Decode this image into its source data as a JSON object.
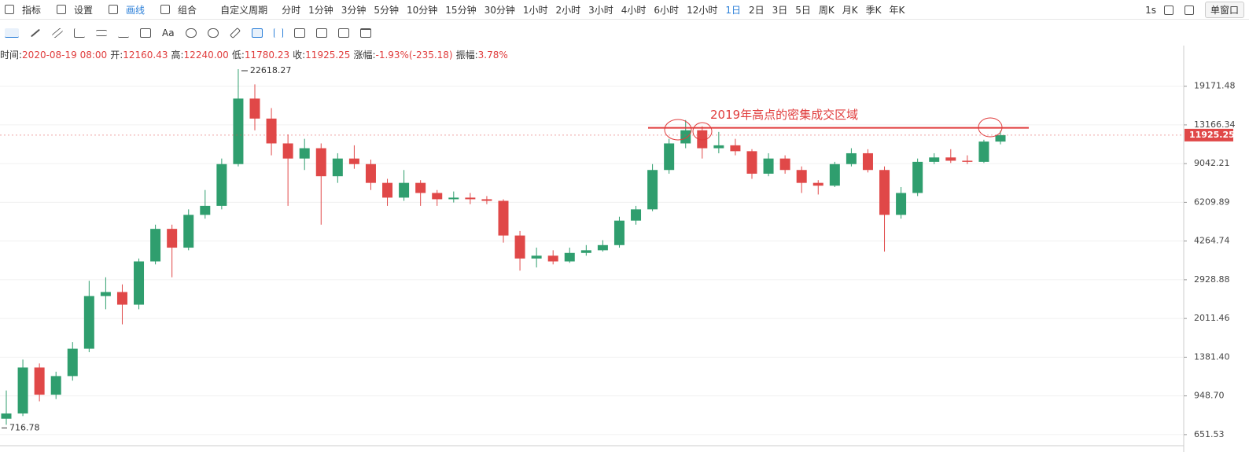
{
  "toolbar": {
    "items": [
      "指标",
      "设置",
      "画线",
      "组合"
    ],
    "period_menu": "自定义周期",
    "periods": [
      "分时",
      "1分钟",
      "3分钟",
      "5分钟",
      "10分钟",
      "15分钟",
      "30分钟",
      "1小时",
      "2小时",
      "3小时",
      "4小时",
      "6小时",
      "12小时",
      "1日",
      "2日",
      "3日",
      "5日",
      "周K",
      "月K",
      "季K",
      "年K"
    ],
    "active_period": "1日",
    "active_color": "#2b7fd8",
    "interval": "1s",
    "window": "单窗口"
  },
  "drawing_tools": {
    "text_tool": "Aa"
  },
  "info_bar": {
    "items": [
      {
        "label": "时间:",
        "value": "2020-08-19 08:00"
      },
      {
        "label": "开:",
        "value": "12160.43"
      },
      {
        "label": "高:",
        "value": "12240.00"
      },
      {
        "label": "低:",
        "value": "11780.23"
      },
      {
        "label": "收:",
        "value": "11925.25"
      },
      {
        "label": "涨幅:",
        "value": "-1.93%(-235.18)"
      },
      {
        "label": "振幅:",
        "value": "3.78%"
      }
    ],
    "value_color": "#e03c3c"
  },
  "chart_data": {
    "type": "candlestick",
    "log_scale": true,
    "grid": true,
    "up_color": "#2f9e6e",
    "down_color": "#e04848",
    "ylim": [
      585,
      28000
    ],
    "yticks": [
      {
        "value": 651.53,
        "label": "651.53"
      },
      {
        "value": 948.7,
        "label": "948.70"
      },
      {
        "value": 1381.4,
        "label": "1381.40"
      },
      2011.46,
      2928.88,
      4264.74,
      6209.89,
      9042.21,
      13166.34,
      19171.48
    ],
    "candles": {
      "open": [
        760,
        800,
        1250,
        960,
        1150,
        1500,
        2500,
        2600,
        2300,
        3500,
        4800,
        4000,
        5500,
        6000,
        9000,
        17000,
        14000,
        11000,
        9500,
        10500,
        8000,
        9500,
        9000,
        7500,
        6500,
        7500,
        6800,
        6400,
        6500,
        6400,
        6300,
        4500,
        3600,
        3700,
        3500,
        3800,
        3900,
        4100,
        5200,
        5800,
        8500,
        11000,
        12500,
        10500,
        10800,
        10200,
        8200,
        9500,
        8500,
        7500,
        7300,
        9000,
        10000,
        8500,
        5500,
        6800,
        9200,
        9600,
        9300,
        9200,
        11200
      ],
      "high": [
        1000,
        1350,
        1300,
        1200,
        1600,
        2900,
        3000,
        2800,
        3600,
        5000,
        5000,
        5800,
        7000,
        9500,
        22618.27,
        19500,
        15500,
        12000,
        11500,
        11000,
        10000,
        10800,
        9400,
        7800,
        8500,
        7700,
        7000,
        6900,
        6800,
        6600,
        6400,
        4700,
        4000,
        3900,
        4000,
        4100,
        4300,
        5400,
        6000,
        9000,
        11500,
        13800,
        13000,
        12300,
        11500,
        10400,
        10000,
        9800,
        8800,
        7700,
        9200,
        10500,
        10400,
        8800,
        7200,
        9500,
        10000,
        10400,
        9800,
        11400,
        12450
      ],
      "low": [
        716.78,
        780,
        900,
        920,
        1100,
        1450,
        2200,
        1900,
        2200,
        3400,
        3000,
        3900,
        5300,
        5800,
        8800,
        12500,
        9800,
        6000,
        8500,
        5000,
        7500,
        8600,
        7000,
        6000,
        6300,
        6000,
        6000,
        6200,
        6100,
        6100,
        4200,
        3200,
        3300,
        3400,
        3450,
        3700,
        3850,
        4000,
        5000,
        5700,
        8200,
        10500,
        9500,
        10000,
        9800,
        7800,
        8000,
        8200,
        6800,
        6700,
        7200,
        8800,
        8300,
        3850,
        5300,
        6600,
        9000,
        9100,
        9000,
        9100,
        10900
      ],
      "close": [
        800,
        1250,
        960,
        1150,
        1500,
        2500,
        2600,
        2300,
        3500,
        4800,
        4000,
        5500,
        6000,
        9000,
        17000,
        14000,
        11000,
        9500,
        10500,
        8000,
        9500,
        9000,
        7500,
        6500,
        7500,
        6800,
        6400,
        6500,
        6400,
        6300,
        4500,
        3600,
        3700,
        3500,
        3800,
        3900,
        4100,
        5200,
        5800,
        8500,
        11000,
        12500,
        10500,
        10800,
        10200,
        8200,
        9500,
        8500,
        7500,
        7300,
        9000,
        10000,
        8500,
        5500,
        6800,
        9200,
        9600,
        9300,
        9200,
        11200,
        11925.25
      ]
    },
    "hline": {
      "value": 12800,
      "color": "#e03c3c"
    },
    "annotation": "2019年高点的密集成交区域"
  }
}
